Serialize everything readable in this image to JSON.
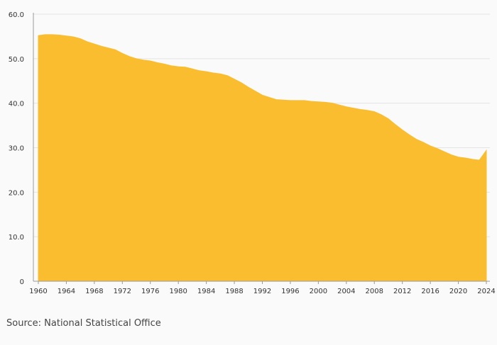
{
  "source_text": "Source: National Statistical Office",
  "colors": {
    "area_fill": "#f9bd2f",
    "grid": "#e4e4e4",
    "axis": "#9a9a9a",
    "background": "#fafafa"
  },
  "chart_data": {
    "type": "area",
    "title": "",
    "xlabel": "",
    "ylabel": "",
    "ylim": [
      0,
      60
    ],
    "xlim": [
      1960,
      2024
    ],
    "grid": true,
    "y_ticks": [
      0,
      10,
      20,
      30,
      40,
      50,
      60
    ],
    "y_tick_labels": [
      "0",
      "10.0",
      "20.0",
      "30.0",
      "40.0",
      "50.0",
      "60.0"
    ],
    "x_ticks": [
      1960,
      1964,
      1968,
      1972,
      1976,
      1980,
      1984,
      1988,
      1992,
      1996,
      2000,
      2004,
      2008,
      2012,
      2016,
      2020,
      2024
    ],
    "x_tick_labels": [
      "1960",
      "1964",
      "1968",
      "1972",
      "1976",
      "1980",
      "1984",
      "1988",
      "1992",
      "1996",
      "2000",
      "2004",
      "2008",
      "2012",
      "2016",
      "2020",
      "2024"
    ],
    "series": [
      {
        "x": [
          1960,
          1961,
          1962,
          1963,
          1964,
          1965,
          1966,
          1967,
          1968,
          1969,
          1970,
          1971,
          1972,
          1973,
          1974,
          1975,
          1976,
          1977,
          1978,
          1979,
          1980,
          1981,
          1982,
          1983,
          1984,
          1985,
          1986,
          1987,
          1988,
          1989,
          1990,
          1991,
          1992,
          1993,
          1994,
          1995,
          1996,
          1997,
          1998,
          1999,
          2000,
          2001,
          2002,
          2003,
          2004,
          2005,
          2006,
          2007,
          2008,
          2009,
          2010,
          2011,
          2012,
          2013,
          2014,
          2015,
          2016,
          2017,
          2018,
          2019,
          2020,
          2021,
          2022,
          2023,
          2024
        ],
        "values": [
          55.2,
          55.4,
          55.4,
          55.3,
          55.1,
          54.9,
          54.5,
          53.8,
          53.3,
          52.8,
          52.4,
          52.0,
          51.2,
          50.5,
          50.0,
          49.7,
          49.5,
          49.1,
          48.8,
          48.4,
          48.2,
          48.1,
          47.7,
          47.3,
          47.1,
          46.8,
          46.6,
          46.2,
          45.4,
          44.6,
          43.6,
          42.7,
          41.8,
          41.3,
          40.8,
          40.7,
          40.6,
          40.6,
          40.6,
          40.4,
          40.3,
          40.2,
          40.0,
          39.6,
          39.2,
          38.9,
          38.6,
          38.4,
          38.1,
          37.4,
          36.5,
          35.2,
          34.0,
          32.9,
          31.9,
          31.2,
          30.4,
          29.8,
          29.1,
          28.4,
          27.9,
          27.7,
          27.4,
          27.2,
          29.4
        ]
      }
    ]
  }
}
